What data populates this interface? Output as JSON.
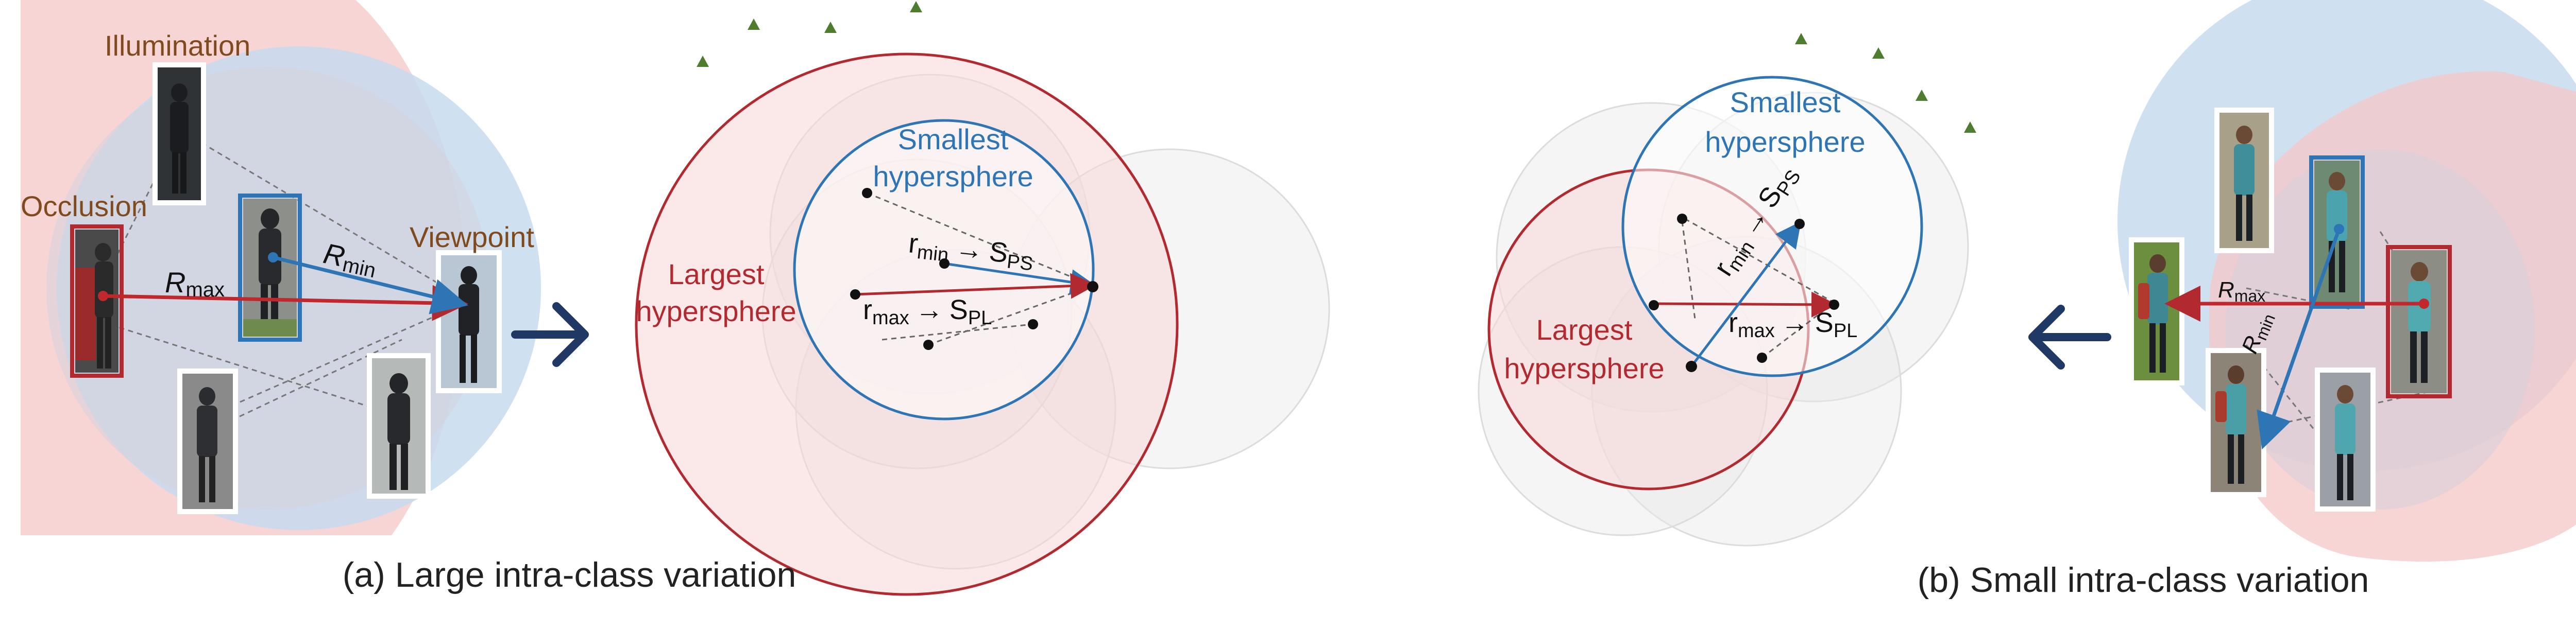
{
  "panel_a": {
    "factor_labels": {
      "illumination": "Illumination",
      "occlusion": "Occlusion",
      "viewpoint": "Viewpoint"
    },
    "rmax_label": "R",
    "rmax_sub": "max",
    "rmin_label": "R",
    "rmin_sub": "min",
    "smallest_line1": "Smallest",
    "smallest_line2": "hypersphere",
    "largest_line1": "Largest",
    "largest_line2": "hypersphere",
    "rmin_text": "r",
    "rmin_text_sub": "min",
    "sps": "S",
    "sps_sub": "PS",
    "rmax_text": "r",
    "rmax_text_sub": "max",
    "spl": "S",
    "spl_sub": "PL",
    "arrow": "→",
    "caption": "(a) Large intra-class variation"
  },
  "panel_b": {
    "smallest_line1": "Smallest",
    "smallest_line2": "hypersphere",
    "largest_line1": "Largest",
    "largest_line2": "hypersphere",
    "rmin_text": "r",
    "rmin_text_sub": "min",
    "sps": "S",
    "sps_sub": "PS",
    "rmax_text": "r",
    "rmax_text_sub": "max",
    "spl": "S",
    "spl_sub": "PL",
    "arrow": "→",
    "rmax_label": "R",
    "rmax_sub": "max",
    "rmin_label": "R",
    "rmin_sub": "min",
    "caption": "(b) Small intra-class variation"
  },
  "colors": {
    "red": "#b22a30",
    "blue": "#2e75b6",
    "brown": "#7f4a1e",
    "navy": "#1f3864",
    "green": "#4e7d2f"
  }
}
